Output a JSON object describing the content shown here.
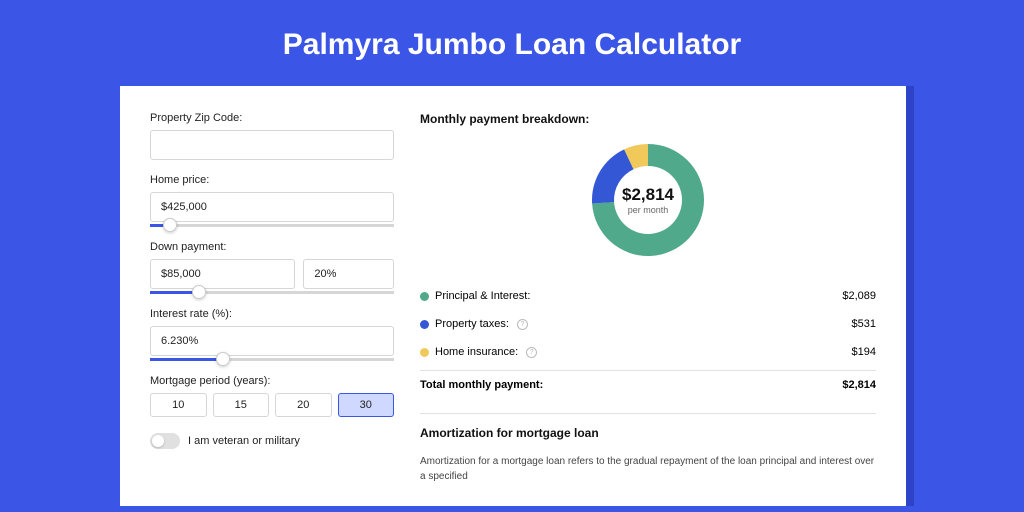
{
  "page": {
    "title": "Palmyra Jumbo Loan Calculator",
    "background_color": "#3b55e6",
    "shadow_color": "#2d44c9",
    "card_color": "#ffffff"
  },
  "form": {
    "zip_label": "Property Zip Code:",
    "zip_value": "",
    "home_price_label": "Home price:",
    "home_price_value": "$425,000",
    "home_price_slider_pct": 8,
    "down_payment_label": "Down payment:",
    "down_payment_value": "$85,000",
    "down_payment_pct_value": "20%",
    "down_payment_slider_pct": 20,
    "interest_label": "Interest rate (%):",
    "interest_value": "6.230%",
    "interest_slider_pct": 30,
    "period_label": "Mortgage period (years):",
    "periods": [
      "10",
      "15",
      "20",
      "30"
    ],
    "period_selected": "30",
    "veteran_label": "I am veteran or military",
    "veteran_on": false
  },
  "breakdown": {
    "title": "Monthly payment breakdown:",
    "donut": {
      "value": "$2,814",
      "sub": "per month",
      "segments": [
        {
          "label": "Principal & Interest",
          "color": "#4fa98a",
          "pct": 74
        },
        {
          "label": "Property taxes",
          "color": "#3457d5",
          "pct": 19
        },
        {
          "label": "Home insurance",
          "color": "#f0c95a",
          "pct": 7
        }
      ]
    },
    "rows": [
      {
        "label": "Principal & Interest:",
        "color": "#4fa98a",
        "value": "$2,089",
        "info": false
      },
      {
        "label": "Property taxes:",
        "color": "#3457d5",
        "value": "$531",
        "info": true
      },
      {
        "label": "Home insurance:",
        "color": "#f0c95a",
        "value": "$194",
        "info": true
      }
    ],
    "total_label": "Total monthly payment:",
    "total_value": "$2,814"
  },
  "amortization": {
    "title": "Amortization for mortgage loan",
    "body": "Amortization for a mortgage loan refers to the gradual repayment of the loan principal and interest over a specified"
  }
}
